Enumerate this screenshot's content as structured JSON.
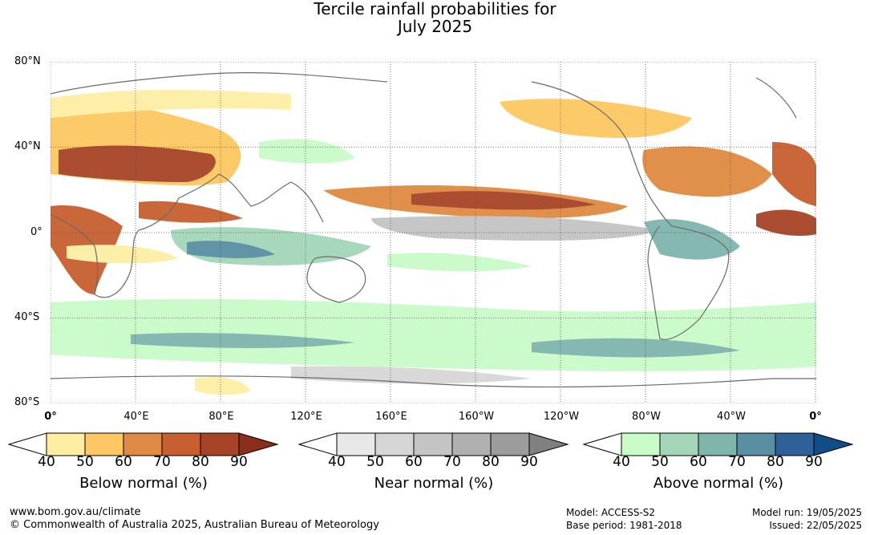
{
  "title_line1": "Tercile rainfall probabilities for",
  "title_line2": "July 2025",
  "lat_labels": [
    "80°N",
    "40°N",
    "0°",
    "40°S",
    "80°S"
  ],
  "lon_labels": [
    "0°",
    "40°E",
    "80°E",
    "120°E",
    "160°E",
    "160°W",
    "120°W",
    "80°W",
    "40°W",
    "0°"
  ],
  "legend_ticks": [
    "40",
    "50",
    "60",
    "70",
    "80",
    "90"
  ],
  "legends": [
    {
      "title": "Below normal (%)",
      "colors": [
        "#ffffff",
        "#fdeea4",
        "#fdc863",
        "#e08b43",
        "#c85f30",
        "#a74427",
        "#8b2e1b"
      ]
    },
    {
      "title": "Near normal (%)",
      "colors": [
        "#ffffff",
        "#e8e8e8",
        "#d6d6d6",
        "#c4c4c4",
        "#b0b0b0",
        "#9c9c9c",
        "#808080"
      ]
    },
    {
      "title": "Above normal (%)",
      "colors": [
        "#ffffff",
        "#c9fbc9",
        "#a3d6b8",
        "#80b5ae",
        "#5a8fa3",
        "#2f6199",
        "#124d8a"
      ]
    }
  ],
  "footer": {
    "url": "www.bom.gov.au/climate",
    "copyright": "© Commonwealth of Australia 2025, Australian Bureau of Meteorology",
    "model": "Model: ACCESS-S2",
    "base_period": "Base period: 1981-2018",
    "model_run": "Model run: 19/05/2025",
    "issued": "Issued: 22/05/2025"
  }
}
